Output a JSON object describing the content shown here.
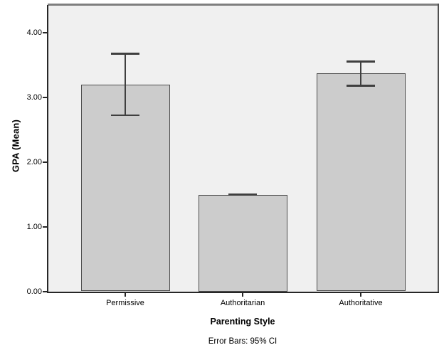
{
  "chart_data": {
    "type": "bar",
    "title": "",
    "categories": [
      "Permissive",
      "Authoritarian",
      "Authoritative"
    ],
    "series": [
      {
        "name": "GPA (Mean)",
        "values": [
          3.2,
          1.5,
          3.37
        ],
        "ci_low": [
          2.72,
          1.49,
          3.18
        ],
        "ci_high": [
          3.68,
          1.51,
          3.56
        ]
      }
    ],
    "xlabel": "Parenting Style",
    "ylabel": "GPA (Mean)",
    "caption": "Error Bars: 95% CI",
    "ylim": [
      0.0,
      4.43
    ],
    "yticks": [
      0,
      1,
      2,
      3,
      4
    ],
    "ytick_labels": [
      "0.00",
      "1.00",
      "2.00",
      "3.00",
      "4.00"
    ],
    "grid": false,
    "legend_position": "none",
    "colors": {
      "page_background": "#ffffff",
      "plot_background": "#f0f0f0",
      "bar_fill": "#cccccc",
      "bar_border": "#4d4d4d",
      "error_bar": "#3f3f3f",
      "frame_top": "#7f7f7f",
      "frame_right": "#4f4f4f",
      "axis": "#262626",
      "text": "#000000"
    }
  }
}
